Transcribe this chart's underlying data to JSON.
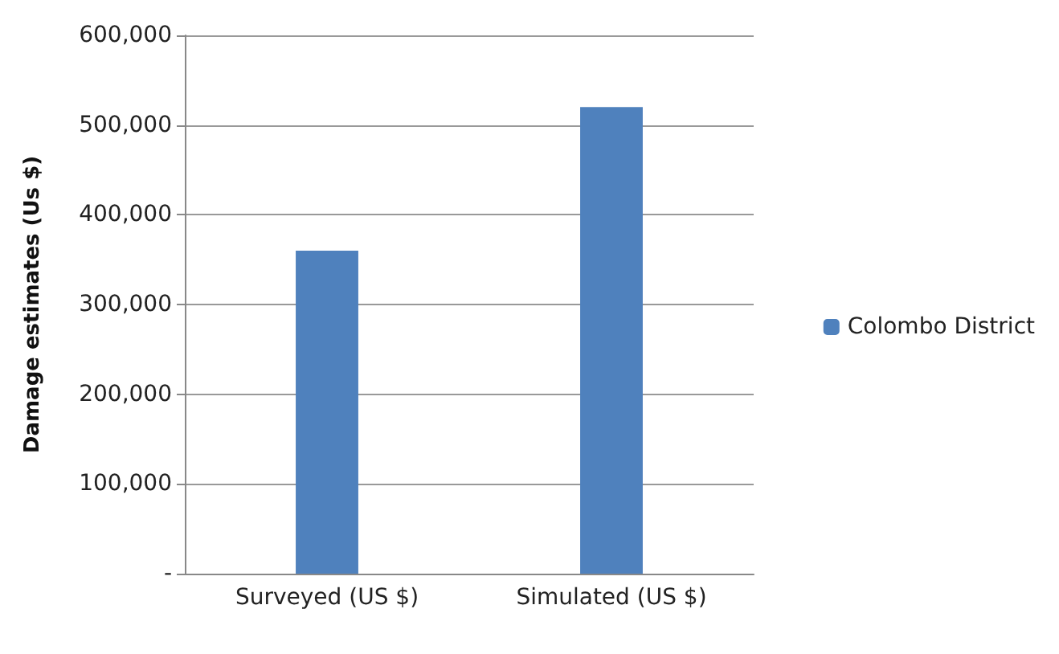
{
  "chart_data": {
    "type": "bar",
    "ylabel": "Damage estimates (Us $)",
    "categories": [
      "Surveyed (US $)",
      "Simulated (US $)"
    ],
    "series": [
      {
        "name": "Colombo District",
        "color": "#4f81bd",
        "values": [
          360000,
          520000
        ]
      }
    ],
    "ylim": [
      0,
      600000
    ],
    "yticks": [
      {
        "value": 0,
        "label": "-"
      },
      {
        "value": 100000,
        "label": "100,000"
      },
      {
        "value": 200000,
        "label": "200,000"
      },
      {
        "value": 300000,
        "label": "300,000"
      },
      {
        "value": 400000,
        "label": "400,000"
      },
      {
        "value": 500000,
        "label": "500,000"
      },
      {
        "value": 600000,
        "label": "600,000"
      }
    ],
    "grid": "y",
    "legend": "right"
  }
}
